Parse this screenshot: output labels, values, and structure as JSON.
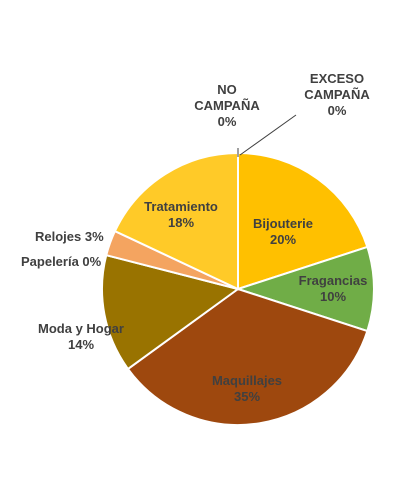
{
  "chart_data": {
    "type": "pie",
    "title": "",
    "slices": [
      {
        "label": "Bijouterie",
        "value": 20,
        "display": "20%",
        "color": "#ffc000"
      },
      {
        "label": "Fragancias",
        "value": 10,
        "display": "10%",
        "color": "#70ad47"
      },
      {
        "label": "Maquillajes",
        "value": 35,
        "display": "35%",
        "color": "#9e480e"
      },
      {
        "label": "Moda y Hogar",
        "value": 14,
        "display": "14%",
        "color": "#997300"
      },
      {
        "label": "Papelería",
        "value": 0,
        "display": "0%",
        "color": "#a5a5a5"
      },
      {
        "label": "Relojes",
        "value": 3,
        "display": "3%",
        "color": "#f4a460"
      },
      {
        "label": "Tratamiento",
        "value": 18,
        "display": "18%",
        "color": "#ffca28"
      },
      {
        "label": "NO CAMPAÑA",
        "value": 0,
        "display": "0%",
        "color": "#f5e08a"
      },
      {
        "label": "EXCESO CAMPAÑA",
        "value": 0,
        "display": "0%",
        "color": "#ffd966"
      }
    ]
  }
}
